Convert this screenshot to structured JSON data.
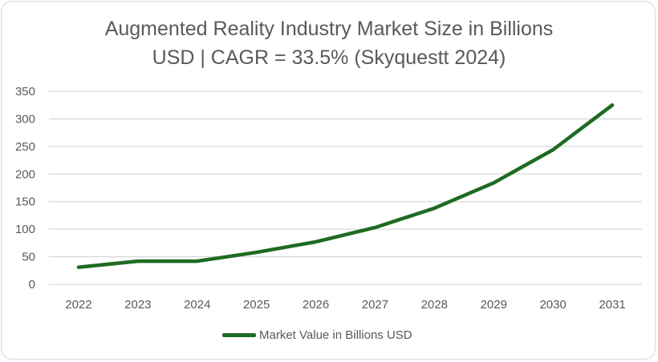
{
  "chart_data": {
    "type": "line",
    "title": "Augmented Reality Industry Market Size in Billions USD | CAGR = 33.5% (Skyquestt 2024)",
    "title_lines": [
      "Augmented Reality Industry Market Size in Billions",
      "USD | CAGR = 33.5% (Skyquestt 2024)"
    ],
    "categories": [
      "2022",
      "2023",
      "2024",
      "2025",
      "2026",
      "2027",
      "2028",
      "2029",
      "2030",
      "2031"
    ],
    "series": [
      {
        "name": "Market Value in Billions USD",
        "values": [
          31,
          42,
          42,
          58,
          77,
          103,
          138,
          184,
          244,
          325
        ],
        "color": "#1e6b22"
      }
    ],
    "xlabel": "",
    "ylabel": "",
    "ylim": [
      0,
      350
    ],
    "yticks": [
      "0",
      "50",
      "100",
      "150",
      "200",
      "250",
      "300",
      "350"
    ],
    "grid": true,
    "legend": "bottom"
  }
}
